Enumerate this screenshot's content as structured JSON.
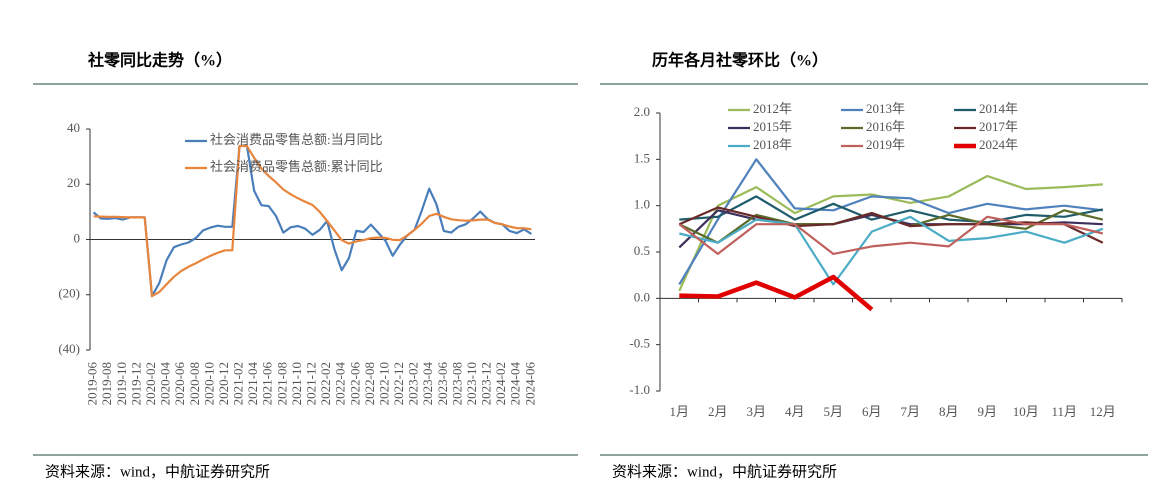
{
  "chart_data": [
    {
      "type": "line",
      "title": "社零同比走势（%）",
      "source": "资料来源：wind，中航证券研究所",
      "categories": [
        "2019-06",
        null,
        "2019-08",
        null,
        "2019-10",
        null,
        "2019-12",
        null,
        "2020-02",
        null,
        "2020-04",
        null,
        "2020-06",
        null,
        "2020-08",
        null,
        "2020-10",
        null,
        "2020-12",
        null,
        "2021-02",
        null,
        "2021-04",
        null,
        "2021-06",
        null,
        "2021-08",
        null,
        "2021-10",
        null,
        "2021-12",
        null,
        "2022-02",
        null,
        "2022-04",
        null,
        "2022-06",
        null,
        "2022-08",
        null,
        "2022-10",
        null,
        "2022-12",
        null,
        "2023-02",
        null,
        "2023-04",
        null,
        "2023-06",
        null,
        "2023-08",
        null,
        "2023-10",
        null,
        "2023-12",
        null,
        "2024-02",
        null,
        "2024-04",
        null,
        "2024-06"
      ],
      "series": [
        {
          "name": "社会消费品零售总额:当月同比",
          "color": "#4a7ebb",
          "values": [
            9.8,
            7.6,
            7.5,
            7.8,
            7.2,
            8.0,
            8.0,
            8.0,
            -20.5,
            -15.8,
            -7.5,
            -2.8,
            -1.8,
            -1.1,
            0.5,
            3.3,
            4.3,
            5.0,
            4.6,
            4.6,
            33.8,
            34.2,
            17.7,
            12.4,
            12.1,
            8.5,
            2.5,
            4.4,
            4.9,
            3.9,
            1.7,
            3.5,
            6.7,
            -3.5,
            -11.1,
            -6.7,
            3.1,
            2.7,
            5.4,
            2.5,
            -0.5,
            -5.9,
            -1.8,
            1.5,
            3.5,
            10.6,
            18.4,
            12.7,
            3.1,
            2.5,
            4.6,
            5.5,
            7.6,
            10.1,
            7.4,
            6.0,
            5.5,
            3.1,
            2.3,
            3.7,
            2.0
          ]
        },
        {
          "name": "社会消费品零售总额:累计同比",
          "color": "#e8853d",
          "values": [
            8.4,
            8.3,
            8.2,
            8.2,
            8.1,
            8.0,
            8.0,
            8.0,
            -20.5,
            -19.0,
            -16.2,
            -13.5,
            -11.4,
            -9.9,
            -8.6,
            -7.2,
            -5.9,
            -4.8,
            -3.9,
            -3.9,
            33.8,
            33.9,
            29.6,
            25.7,
            23.0,
            20.7,
            18.1,
            16.4,
            14.9,
            13.7,
            12.5,
            10.0,
            6.7,
            3.3,
            -0.2,
            -1.5,
            -0.7,
            -0.2,
            0.5,
            0.7,
            0.6,
            -0.1,
            -0.2,
            1.5,
            3.5,
            5.8,
            8.5,
            9.3,
            8.2,
            7.3,
            7.0,
            6.8,
            6.9,
            7.2,
            7.2,
            6.0,
            5.5,
            4.7,
            4.1,
            4.1,
            3.7
          ]
        }
      ],
      "ylim": [
        -40,
        40
      ],
      "yticks": [
        40,
        20,
        0,
        {
          "value": -20,
          "label": "(20)"
        },
        {
          "value": -40,
          "label": "(40)"
        }
      ],
      "negative_tick_color": "#c00000"
    },
    {
      "type": "line",
      "title": "历年各月社零环比（%）",
      "source": "资料来源：wind，中航证券研究所",
      "categories": [
        "1月",
        "2月",
        "3月",
        "4月",
        "5月",
        "6月",
        "7月",
        "8月",
        "9月",
        "10月",
        "11月",
        "12月"
      ],
      "series": [
        {
          "name": "2012年",
          "color": "#9bbb59",
          "values": [
            0.08,
            1.0,
            1.2,
            0.92,
            1.1,
            1.12,
            1.03,
            1.1,
            1.32,
            1.18,
            1.2,
            1.23
          ]
        },
        {
          "name": "2013年",
          "color": "#4f81bd",
          "values": [
            0.15,
            0.85,
            1.5,
            0.97,
            0.95,
            1.1,
            1.08,
            0.92,
            1.02,
            0.96,
            1.0,
            0.95
          ]
        },
        {
          "name": "2014年",
          "color": "#1f5c6b",
          "values": [
            0.85,
            0.88,
            1.1,
            0.85,
            1.02,
            0.85,
            0.95,
            0.85,
            0.82,
            0.9,
            0.88,
            0.96
          ]
        },
        {
          "name": "2015年",
          "color": "#3d2f5b",
          "values": [
            0.55,
            0.95,
            0.85,
            0.8,
            0.8,
            0.9,
            0.8,
            0.8,
            0.8,
            0.8,
            0.82,
            0.8
          ]
        },
        {
          "name": "2016年",
          "color": "#5a6b2a",
          "values": [
            0.8,
            0.6,
            0.9,
            0.8,
            0.8,
            0.92,
            0.78,
            0.9,
            0.8,
            0.75,
            0.95,
            0.85
          ]
        },
        {
          "name": "2017年",
          "color": "#6b2a2a",
          "values": [
            0.8,
            0.98,
            0.88,
            0.78,
            0.8,
            0.92,
            0.78,
            0.8,
            0.8,
            0.82,
            0.8,
            0.6
          ]
        },
        {
          "name": "2018年",
          "color": "#4bacc6",
          "values": [
            0.7,
            0.6,
            0.85,
            0.8,
            0.15,
            0.72,
            0.88,
            0.62,
            0.65,
            0.72,
            0.6,
            0.75
          ]
        },
        {
          "name": "2019年",
          "color": "#c0605d",
          "values": [
            0.8,
            0.48,
            0.8,
            0.8,
            0.48,
            0.56,
            0.6,
            0.56,
            0.88,
            0.8,
            0.8,
            0.7
          ]
        },
        {
          "name": "2024年",
          "color": "#e00000",
          "linewidth": 4.5,
          "values": [
            0.03,
            0.02,
            0.17,
            0.01,
            0.23,
            -0.12,
            null,
            null,
            null,
            null,
            null,
            null
          ]
        }
      ],
      "ylim": [
        -1,
        2
      ],
      "yticks": [
        {
          "value": 2,
          "label": "2.0"
        },
        1.5,
        {
          "value": 1,
          "label": "1.0"
        },
        0.5,
        {
          "value": 0,
          "label": "0.0"
        },
        -0.5,
        {
          "value": -1,
          "label": "-1.0"
        }
      ]
    }
  ]
}
